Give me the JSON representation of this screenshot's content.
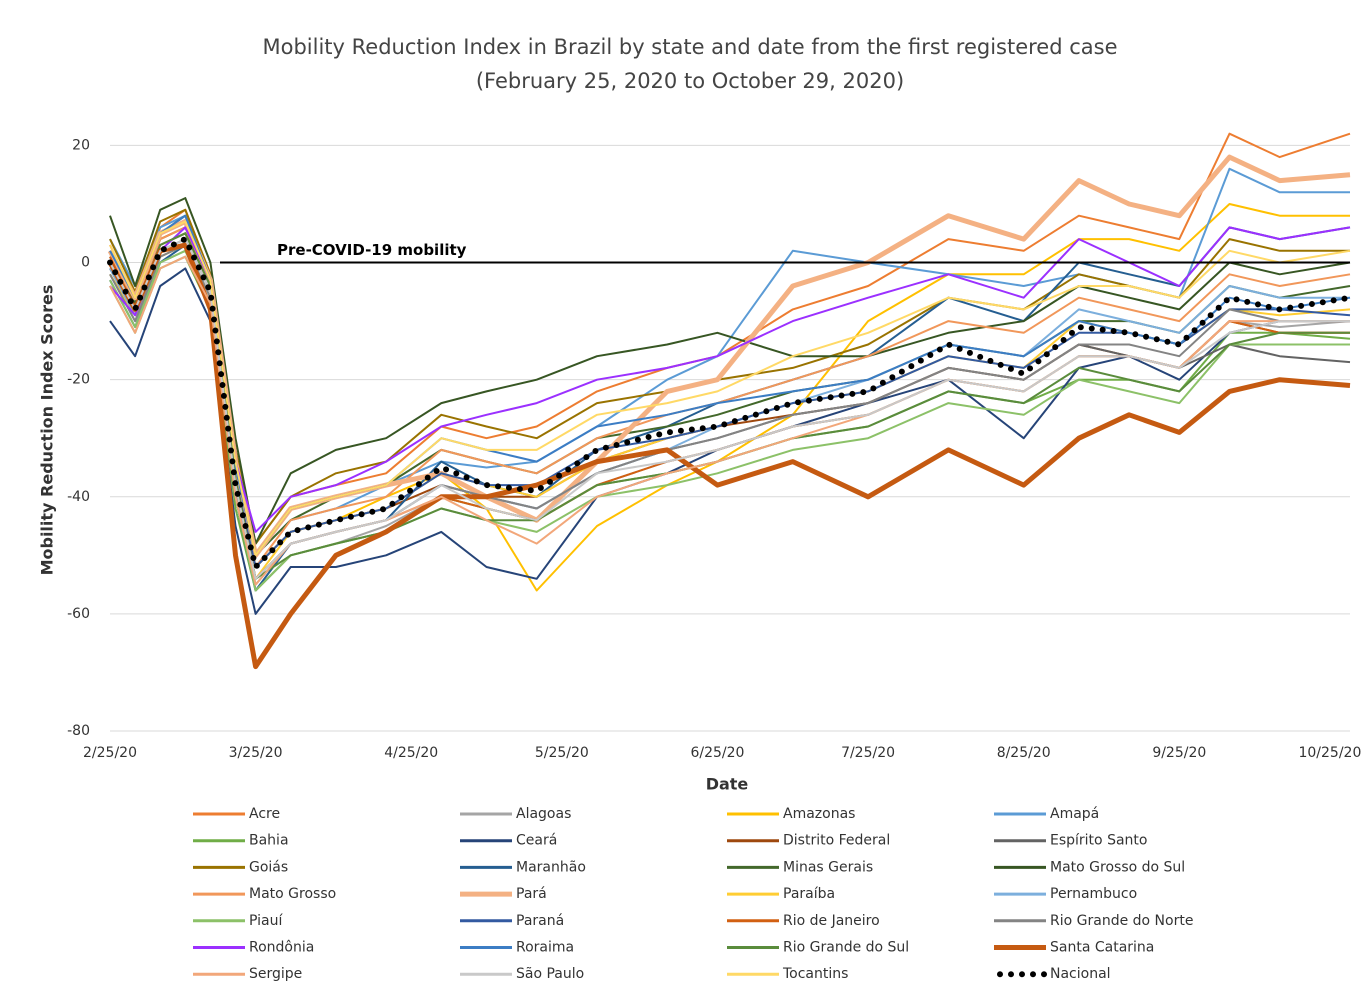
{
  "chart_data": {
    "type": "line",
    "title": "Mobility Reduction Index in Brazil by state and date from the first registered case",
    "subtitle": "(February 25, 2020 to October 29, 2020)",
    "x_label": "Date",
    "y_label": "Mobility Reduction Index Scores",
    "reference_line": {
      "value": 0,
      "label": "Pre-COVID-19 mobility"
    },
    "x": [
      "2/25/20",
      "3/1/20",
      "3/6/20",
      "3/11/20",
      "3/16/20",
      "3/21/20",
      "3/25/20",
      "4/1/20",
      "4/10/20",
      "4/20/20",
      "5/1/20",
      "5/10/20",
      "5/20/20",
      "6/1/20",
      "6/15/20",
      "6/25/20",
      "7/10/20",
      "7/25/20",
      "8/10/20",
      "8/25/20",
      "9/5/20",
      "9/15/20",
      "9/25/20",
      "10/5/20",
      "10/15/20",
      "10/29/20"
    ],
    "xlim": [
      "2/25/20",
      "10/29/20"
    ],
    "xticks": [
      "2/25/20",
      "3/25/20",
      "4/25/20",
      "5/25/20",
      "6/25/20",
      "7/25/20",
      "8/25/20",
      "9/25/20",
      "10/25/20"
    ],
    "ylim": [
      -80,
      24
    ],
    "yticks": [
      20,
      0,
      -20,
      -40,
      -60,
      -80
    ],
    "grid": true,
    "series": [
      {
        "name": "Acre",
        "color": "#ed7d31",
        "values": [
          3,
          -6,
          6,
          9,
          -2,
          -32,
          -48,
          -40,
          -38,
          -36,
          -28,
          -30,
          -28,
          -22,
          -18,
          -16,
          -8,
          -4,
          4,
          2,
          8,
          6,
          4,
          22,
          18,
          22
        ]
      },
      {
        "name": "Alagoas",
        "color": "#a5a5a5",
        "values": [
          -2,
          -10,
          0,
          2,
          -7,
          -40,
          -56,
          -50,
          -48,
          -45,
          -40,
          -42,
          -44,
          -38,
          -34,
          -32,
          -28,
          -26,
          -20,
          -22,
          -16,
          -16,
          -18,
          -10,
          -11,
          -10
        ]
      },
      {
        "name": "Amazonas",
        "color": "#ffc000",
        "values": [
          2,
          -6,
          4,
          6,
          -3,
          -35,
          -52,
          -46,
          -44,
          -40,
          -36,
          -42,
          -56,
          -45,
          -38,
          -34,
          -26,
          -10,
          -2,
          -2,
          4,
          4,
          2,
          10,
          8,
          8
        ]
      },
      {
        "name": "Amapá",
        "color": "#5b9bd5",
        "values": [
          4,
          -4,
          6,
          8,
          -2,
          -34,
          -50,
          -44,
          -42,
          -38,
          -34,
          -35,
          -34,
          -28,
          -20,
          -16,
          2,
          0,
          -2,
          -4,
          -2,
          -4,
          -6,
          16,
          12,
          12
        ]
      },
      {
        "name": "Bahia",
        "color": "#70ad47",
        "values": [
          -4,
          -12,
          -1,
          1,
          -8,
          -42,
          -56,
          -50,
          -48,
          -46,
          -40,
          -42,
          -44,
          -38,
          -36,
          -34,
          -30,
          -28,
          -22,
          -24,
          -20,
          -20,
          -22,
          -12,
          -12,
          -13
        ]
      },
      {
        "name": "Ceará",
        "color": "#264478",
        "values": [
          -10,
          -16,
          -4,
          -1,
          -10,
          -45,
          -60,
          -52,
          -52,
          -50,
          -46,
          -52,
          -54,
          -40,
          -36,
          -32,
          -28,
          -24,
          -20,
          -30,
          -18,
          -16,
          -20,
          -12,
          -10,
          -10
        ]
      },
      {
        "name": "Distrito Federal",
        "color": "#9e480e",
        "values": [
          1,
          -7,
          4,
          6,
          -4,
          -36,
          -52,
          -46,
          -44,
          -42,
          -38,
          -40,
          -40,
          -34,
          -30,
          -28,
          -26,
          -24,
          -18,
          -20,
          -14,
          -16,
          -18,
          -10,
          -12,
          -12
        ]
      },
      {
        "name": "Espírito Santo",
        "color": "#636363",
        "values": [
          -1,
          -9,
          2,
          4,
          -5,
          -38,
          -54,
          -48,
          -46,
          -44,
          -38,
          -40,
          -42,
          -36,
          -32,
          -30,
          -26,
          -24,
          -18,
          -20,
          -14,
          -16,
          -18,
          -14,
          -16,
          -17
        ]
      },
      {
        "name": "Goiás",
        "color": "#997300",
        "values": [
          4,
          -5,
          7,
          9,
          -2,
          -32,
          -48,
          -40,
          -36,
          -34,
          -26,
          -28,
          -30,
          -24,
          -22,
          -20,
          -18,
          -14,
          -6,
          -8,
          -2,
          -4,
          -6,
          4,
          2,
          2
        ]
      },
      {
        "name": "Maranhão",
        "color": "#255e91",
        "values": [
          -3,
          -11,
          0,
          3,
          -6,
          -40,
          -56,
          -48,
          -46,
          -44,
          -34,
          -38,
          -40,
          -32,
          -28,
          -24,
          -20,
          -16,
          -6,
          -10,
          0,
          -2,
          -4,
          6,
          4,
          6
        ]
      },
      {
        "name": "Minas Gerais",
        "color": "#43682b",
        "values": [
          2,
          -7,
          5,
          8,
          -3,
          -35,
          -50,
          -44,
          -40,
          -38,
          -32,
          -34,
          -36,
          -30,
          -28,
          -26,
          -22,
          -20,
          -14,
          -16,
          -10,
          -10,
          -12,
          -4,
          -6,
          -4
        ]
      },
      {
        "name": "Mato Grosso do Sul",
        "color": "#375623",
        "values": [
          8,
          -4,
          9,
          11,
          0,
          -30,
          -48,
          -36,
          -32,
          -30,
          -24,
          -22,
          -20,
          -16,
          -14,
          -12,
          -16,
          -16,
          -12,
          -10,
          -4,
          -6,
          -8,
          0,
          -2,
          0
        ]
      },
      {
        "name": "Mato Grosso",
        "color": "#f1975a",
        "values": [
          2,
          -8,
          4,
          6,
          -4,
          -36,
          -52,
          -44,
          -42,
          -40,
          -32,
          -34,
          -36,
          -30,
          -26,
          -24,
          -20,
          -16,
          -10,
          -12,
          -6,
          -8,
          -10,
          -2,
          -4,
          -2
        ]
      },
      {
        "name": "Pará",
        "color": "#f4b183",
        "width": 5,
        "values": [
          2,
          -6,
          5,
          7,
          -3,
          -34,
          -50,
          -42,
          -40,
          -38,
          -36,
          -40,
          -44,
          -34,
          -22,
          -20,
          -4,
          0,
          8,
          4,
          14,
          10,
          8,
          18,
          14,
          15
        ]
      },
      {
        "name": "Paraíba",
        "color": "#ffcd33",
        "values": [
          -2,
          -9,
          1,
          3,
          -6,
          -39,
          -54,
          -46,
          -44,
          -42,
          -36,
          -38,
          -40,
          -34,
          -30,
          -28,
          -24,
          -22,
          -16,
          -18,
          -10,
          -12,
          -14,
          -8,
          -9,
          -8
        ]
      },
      {
        "name": "Pernambuco",
        "color": "#7cafdd",
        "values": [
          -1,
          -9,
          2,
          4,
          -5,
          -38,
          -54,
          -48,
          -46,
          -44,
          -38,
          -40,
          -42,
          -36,
          -32,
          -28,
          -24,
          -20,
          -14,
          -16,
          -8,
          -10,
          -12,
          -4,
          -6,
          -6
        ]
      },
      {
        "name": "Piauí",
        "color": "#8cc168",
        "values": [
          -3,
          -11,
          0,
          2,
          -7,
          -40,
          -56,
          -50,
          -48,
          -46,
          -42,
          -44,
          -46,
          -40,
          -38,
          -36,
          -32,
          -30,
          -24,
          -26,
          -20,
          -22,
          -24,
          -14,
          -14,
          -14
        ]
      },
      {
        "name": "Paraná",
        "color": "#335aa1",
        "values": [
          0,
          -8,
          3,
          5,
          -4,
          -37,
          -52,
          -46,
          -44,
          -42,
          -36,
          -38,
          -38,
          -32,
          -30,
          -28,
          -24,
          -22,
          -16,
          -18,
          -12,
          -12,
          -14,
          -8,
          -8,
          -9
        ]
      },
      {
        "name": "Rio de Janeiro",
        "color": "#d26012",
        "values": [
          1,
          -8,
          3,
          5,
          -4,
          -37,
          -54,
          -48,
          -46,
          -44,
          -40,
          -42,
          -44,
          -38,
          -34,
          -32,
          -28,
          -26,
          -20,
          -22,
          -16,
          -16,
          -18,
          -10,
          -12,
          -12
        ]
      },
      {
        "name": "Rio Grande do Norte",
        "color": "#848484",
        "values": [
          -2,
          -10,
          1,
          3,
          -6,
          -39,
          -55,
          -48,
          -46,
          -44,
          -38,
          -40,
          -42,
          -36,
          -32,
          -30,
          -26,
          -24,
          -18,
          -20,
          -14,
          -14,
          -16,
          -8,
          -10,
          -10
        ]
      },
      {
        "name": "Rondônia",
        "color": "#9b30ff",
        "values": [
          -4,
          -9,
          2,
          6,
          -3,
          -34,
          -46,
          -40,
          -38,
          -34,
          -28,
          -26,
          -24,
          -20,
          -18,
          -16,
          -10,
          -6,
          -2,
          -6,
          4,
          0,
          -4,
          6,
          4,
          6
        ]
      },
      {
        "name": "Roraima",
        "color": "#3c7dc4",
        "values": [
          2,
          -6,
          5,
          8,
          -3,
          -35,
          -50,
          -42,
          -40,
          -38,
          -30,
          -32,
          -34,
          -28,
          -26,
          -24,
          -22,
          -20,
          -14,
          -16,
          -10,
          -12,
          -14,
          -6,
          -8,
          -6
        ]
      },
      {
        "name": "Rio Grande do Sul",
        "color": "#5a8c3c",
        "values": [
          0,
          -8,
          3,
          5,
          -4,
          -37,
          -54,
          -50,
          -48,
          -46,
          -42,
          -44,
          -44,
          -38,
          -36,
          -34,
          -30,
          -28,
          -22,
          -24,
          -18,
          -20,
          -22,
          -14,
          -12,
          -12
        ]
      },
      {
        "name": "Santa Catarina",
        "color": "#c55a11",
        "width": 5,
        "values": [
          0,
          -8,
          2,
          3,
          -8,
          -50,
          -69,
          -60,
          -50,
          -46,
          -40,
          -40,
          -38,
          -34,
          -32,
          -38,
          -34,
          -40,
          -32,
          -38,
          -30,
          -26,
          -29,
          -22,
          -20,
          -21
        ]
      },
      {
        "name": "Sergipe",
        "color": "#f2a77a",
        "values": [
          -4,
          -12,
          -1,
          1,
          -7,
          -40,
          -55,
          -48,
          -46,
          -44,
          -40,
          -44,
          -48,
          -40,
          -36,
          -34,
          -30,
          -26,
          -20,
          -22,
          -16,
          -16,
          -18,
          -10,
          -10,
          -10
        ]
      },
      {
        "name": "São Paulo",
        "color": "#c9c9c9",
        "values": [
          0,
          -8,
          2,
          4,
          -5,
          -38,
          -54,
          -48,
          -46,
          -44,
          -38,
          -42,
          -44,
          -36,
          -34,
          -32,
          -28,
          -26,
          -20,
          -22,
          -16,
          -16,
          -18,
          -12,
          -10,
          -10
        ]
      },
      {
        "name": "Tocantins",
        "color": "#ffd966",
        "values": [
          3,
          -6,
          5,
          7,
          -3,
          -34,
          -50,
          -42,
          -40,
          -38,
          -30,
          -32,
          -32,
          -26,
          -24,
          -22,
          -16,
          -12,
          -6,
          -8,
          -4,
          -4,
          -6,
          2,
          0,
          2
        ]
      },
      {
        "name": "Nacional",
        "color": "#000000",
        "dash": "dotted",
        "values": [
          0,
          -8,
          2,
          4,
          -5,
          -38,
          -52,
          -46,
          -44,
          -42,
          -35,
          -38,
          -39,
          -32,
          -29,
          -28,
          -24,
          -22,
          -14,
          -19,
          -11,
          -12,
          -14,
          -6,
          -8,
          -6
        ]
      }
    ]
  }
}
